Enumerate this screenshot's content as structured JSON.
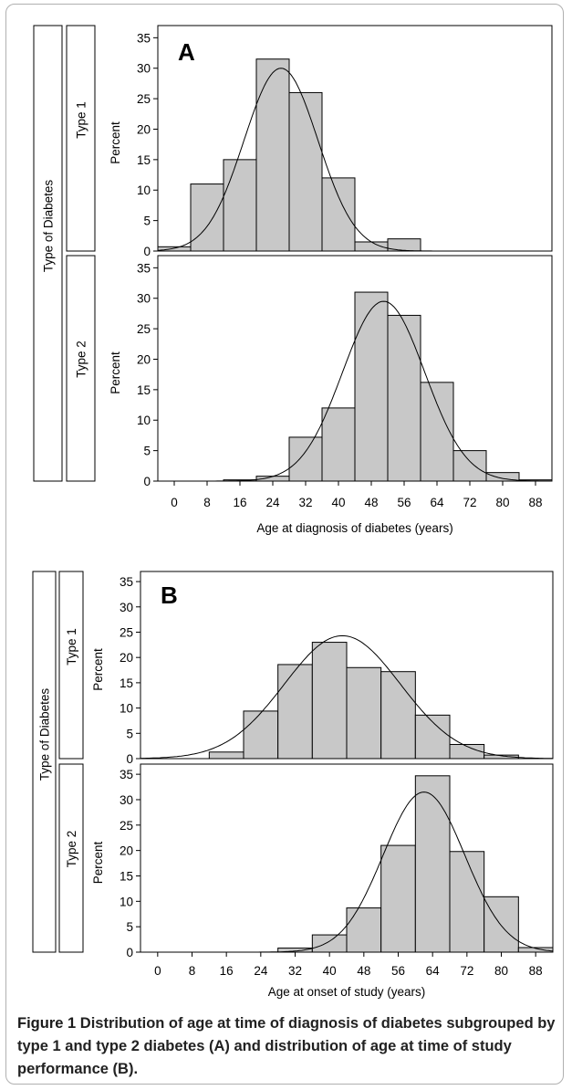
{
  "figure": {
    "caption_label": "Figure 1",
    "caption_text": "Distribution of age at time of diagnosis of diabetes subgrouped by type 1 and type 2 diabetes (A) and distribution of age at time of study performance (B)."
  },
  "colors": {
    "bar_fill": "#c8c8c8",
    "bar_stroke": "#000000",
    "curve": "#000000",
    "frame": "#000000"
  },
  "chart_data": [
    {
      "type": "bar",
      "panel_letter": "A",
      "group_label": "Type of Diabetes",
      "xlabel": "Age at diagnosis of diabetes (years)",
      "ylabel": "Percent",
      "x_ticks": [
        0,
        8,
        16,
        24,
        32,
        40,
        48,
        56,
        64,
        72,
        80,
        88
      ],
      "y_ticks": [
        0,
        5,
        10,
        15,
        20,
        25,
        30,
        35
      ],
      "xlim": [
        -4,
        92
      ],
      "ylim": [
        0,
        37
      ],
      "bin_width": 8,
      "grid": false,
      "overlay": "normal-curve",
      "series": [
        {
          "name": "Type 1",
          "bins": [
            -4,
            4,
            12,
            20,
            28,
            36,
            44,
            52,
            60,
            68,
            76,
            84
          ],
          "values": [
            0.7,
            11,
            15,
            31.5,
            26,
            12,
            1.5,
            2,
            0,
            0,
            0,
            0
          ],
          "curve_mean": 26,
          "curve_sd": 9,
          "curve_peak": 30
        },
        {
          "name": "Type 2",
          "bins": [
            -4,
            4,
            12,
            20,
            28,
            36,
            44,
            52,
            60,
            68,
            76,
            84
          ],
          "values": [
            0,
            0,
            0.2,
            0.8,
            7.2,
            12,
            31,
            27.2,
            16.2,
            5,
            1.4,
            0.2
          ],
          "curve_mean": 51,
          "curve_sd": 10,
          "curve_peak": 29.5
        }
      ]
    },
    {
      "type": "bar",
      "panel_letter": "B",
      "group_label": "Type of Diabetes",
      "xlabel": "Age at onset of study (years)",
      "ylabel": "Percent",
      "x_ticks": [
        0,
        8,
        16,
        24,
        32,
        40,
        48,
        56,
        64,
        72,
        80,
        88
      ],
      "y_ticks": [
        0,
        5,
        10,
        15,
        20,
        25,
        30,
        35
      ],
      "xlim": [
        -4,
        92
      ],
      "ylim": [
        0,
        37
      ],
      "bin_width": 8,
      "grid": false,
      "overlay": "normal-curve",
      "series": [
        {
          "name": "Type 1",
          "bins": [
            -4,
            4,
            12,
            20,
            28,
            36,
            44,
            52,
            60,
            68,
            76,
            84
          ],
          "values": [
            0,
            0,
            1.3,
            9.4,
            18.6,
            23,
            18,
            17.2,
            8.6,
            2.8,
            0.7,
            0
          ],
          "curve_mean": 43,
          "curve_sd": 13.5,
          "curve_peak": 24.3
        },
        {
          "name": "Type 2",
          "bins": [
            -4,
            4,
            12,
            20,
            28,
            36,
            44,
            52,
            60,
            68,
            76,
            84
          ],
          "values": [
            0,
            0,
            0,
            0,
            0.8,
            3.4,
            8.7,
            21,
            34.7,
            19.8,
            10.9,
            0.9
          ],
          "curve_mean": 62,
          "curve_sd": 9.5,
          "curve_peak": 31.5
        }
      ]
    }
  ]
}
